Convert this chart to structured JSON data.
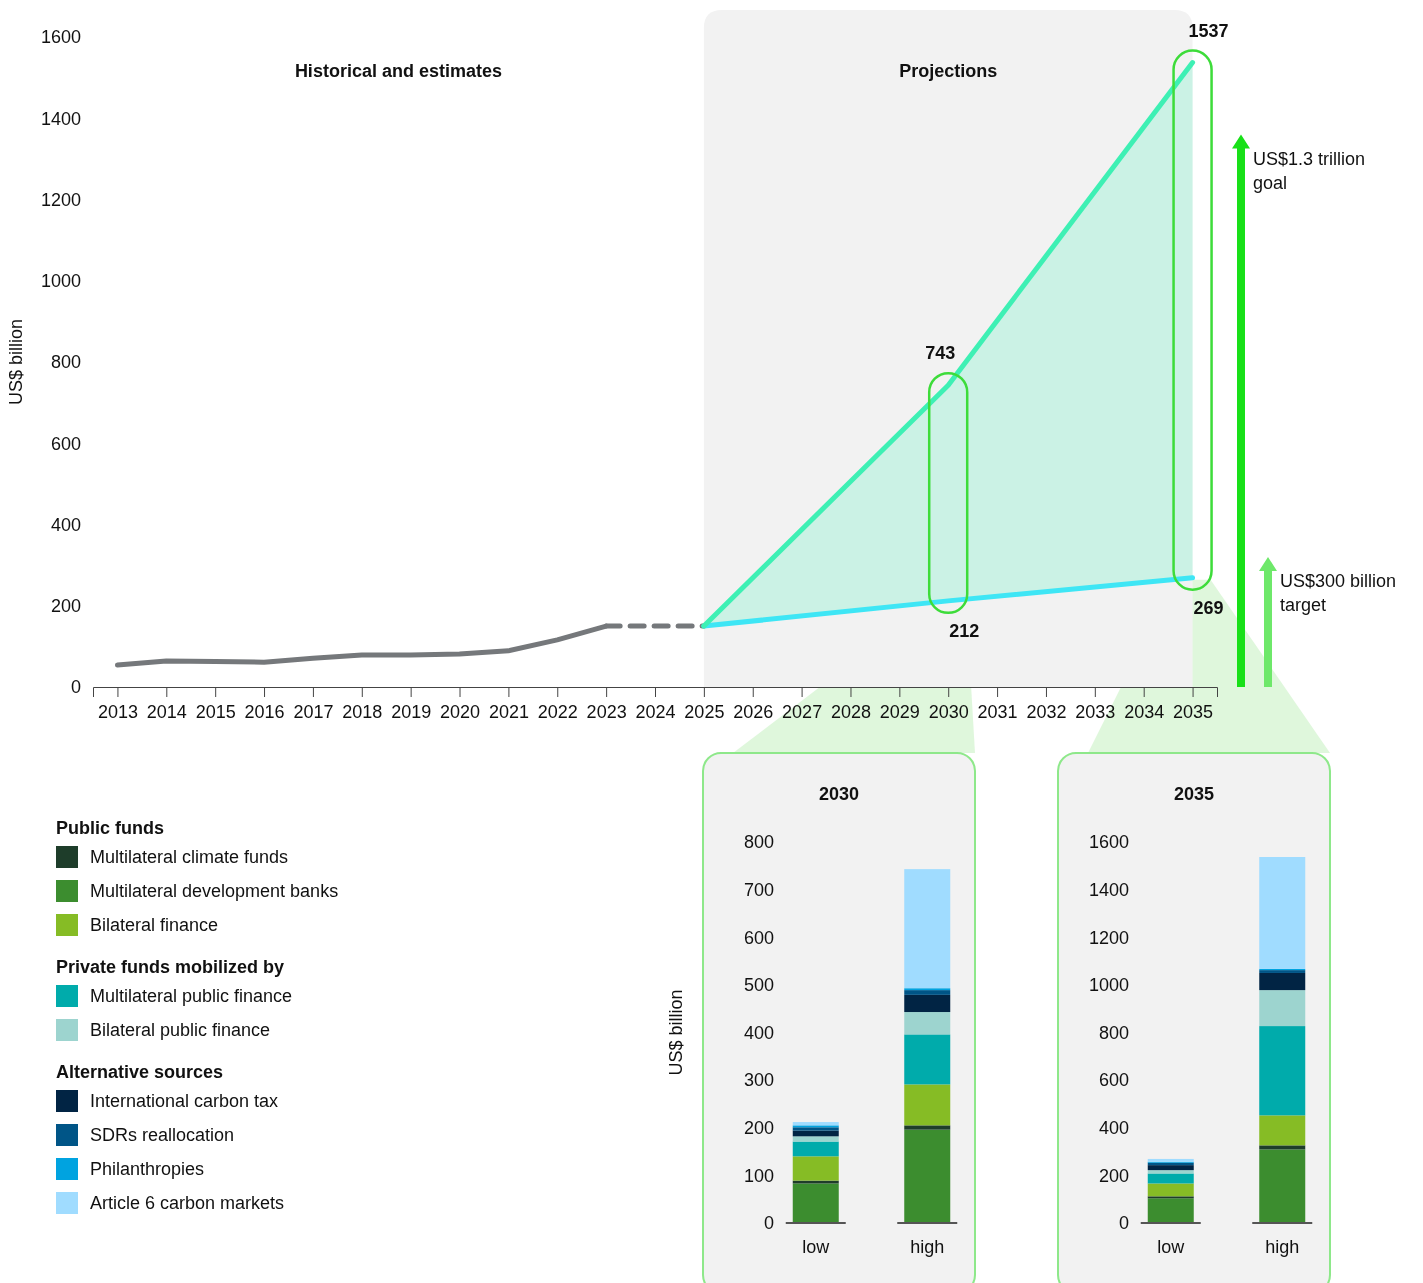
{
  "chart_data": [
    {
      "type": "line",
      "ylabel": "US$ billion",
      "xlim": [
        2012.5,
        2035.5
      ],
      "xticks": [
        2013,
        2014,
        2015,
        2016,
        2017,
        2018,
        2019,
        2020,
        2021,
        2022,
        2023,
        2024,
        2025,
        2026,
        2027,
        2028,
        2029,
        2030,
        2031,
        2032,
        2033,
        2034,
        2035
      ],
      "ylim": [
        0,
        1600
      ],
      "yticks": [
        0,
        200,
        400,
        600,
        800,
        1000,
        1200,
        1400,
        1600
      ],
      "series": [
        {
          "x": [
            2013,
            2014,
            2015,
            2016,
            2017,
            2018,
            2019,
            2020,
            2021,
            2022,
            2023
          ],
          "values": [
            54,
            64,
            63,
            61,
            71,
            79,
            79,
            81,
            89,
            116,
            150
          ],
          "color": "#75787b"
        },
        {
          "x": [
            2023,
            2025
          ],
          "values": [
            150,
            150
          ],
          "color": "#75787b",
          "line_style": "dashed"
        },
        {
          "x": [
            2025,
            2030,
            2035
          ],
          "values": [
            150,
            212,
            269
          ],
          "color": "#3ee6f5",
          "value_labels": [
            null,
            "212",
            "269"
          ]
        },
        {
          "x": [
            2025,
            2030,
            2035
          ],
          "values": [
            150,
            743,
            1537
          ],
          "color": "#3ef0b4",
          "value_labels": [
            null,
            "743",
            "1537"
          ],
          "lower": [
            150,
            212,
            269
          ],
          "upper": [
            150,
            743,
            1537
          ]
        }
      ],
      "bands": [
        {
          "axis": "x",
          "from": 2025,
          "to": 2035,
          "label": "Projections",
          "color": "#f2f2f2"
        }
      ],
      "annotations": [
        "Historical and estimates",
        "US$1.3 trillion goal",
        "US$300 billion target"
      ]
    },
    {
      "type": "bar",
      "stacked": true,
      "title": "2030",
      "ylabel": "US$ billion",
      "categories": [
        "low",
        "high"
      ],
      "ylim": [
        0,
        800
      ],
      "yticks": [
        0,
        100,
        200,
        300,
        400,
        500,
        600,
        700,
        800
      ],
      "legend": "left",
      "annotations": [
        "Public funds",
        "Private funds mobilized by",
        "Alternative sources"
      ],
      "series": [
        {
          "name": "Multilateral development banks",
          "color": "#3c8d2f",
          "values": [
            83,
            196
          ]
        },
        {
          "name": "Multilateral climate funds",
          "color": "#1e3d2a",
          "values": [
            6,
            9
          ]
        },
        {
          "name": "Bilateral finance",
          "color": "#86bc25",
          "values": [
            51,
            86
          ]
        },
        {
          "name": "Multilateral public finance",
          "color": "#00abab",
          "values": [
            31,
            105
          ]
        },
        {
          "name": "Bilateral public finance",
          "color": "#9dd4cf",
          "values": [
            11,
            47
          ]
        },
        {
          "name": "International carbon tax",
          "color": "#012444",
          "values": [
            12,
            36
          ]
        },
        {
          "name": "SDRs reallocation",
          "color": "#005587",
          "values": [
            7,
            10
          ]
        },
        {
          "name": "Philanthropies",
          "color": "#00a3e0",
          "values": [
            4,
            4
          ]
        },
        {
          "name": "Article 6 carbon markets",
          "color": "#a0dcff",
          "values": [
            7,
            250
          ]
        }
      ]
    },
    {
      "type": "bar",
      "stacked": true,
      "title": "2035",
      "categories": [
        "low",
        "high"
      ],
      "ylim": [
        0,
        1600
      ],
      "yticks": [
        0,
        200,
        400,
        600,
        800,
        1000,
        1200,
        1400,
        1600
      ],
      "series": [
        {
          "color": "#3c8d2f",
          "values": [
            104,
            309
          ]
        },
        {
          "color": "#1e3d2a",
          "values": [
            8,
            17
          ]
        },
        {
          "color": "#86bc25",
          "values": [
            54,
            126
          ]
        },
        {
          "color": "#00abab",
          "values": [
            42,
            375
          ]
        },
        {
          "color": "#9dd4cf",
          "values": [
            14,
            151
          ]
        },
        {
          "color": "#012444",
          "values": [
            21,
            72
          ]
        },
        {
          "color": "#005587",
          "values": [
            10,
            12
          ]
        },
        {
          "color": "#00a3e0",
          "values": [
            4,
            5
          ]
        },
        {
          "color": "#a0dcff",
          "values": [
            12,
            470
          ]
        }
      ]
    }
  ]
}
